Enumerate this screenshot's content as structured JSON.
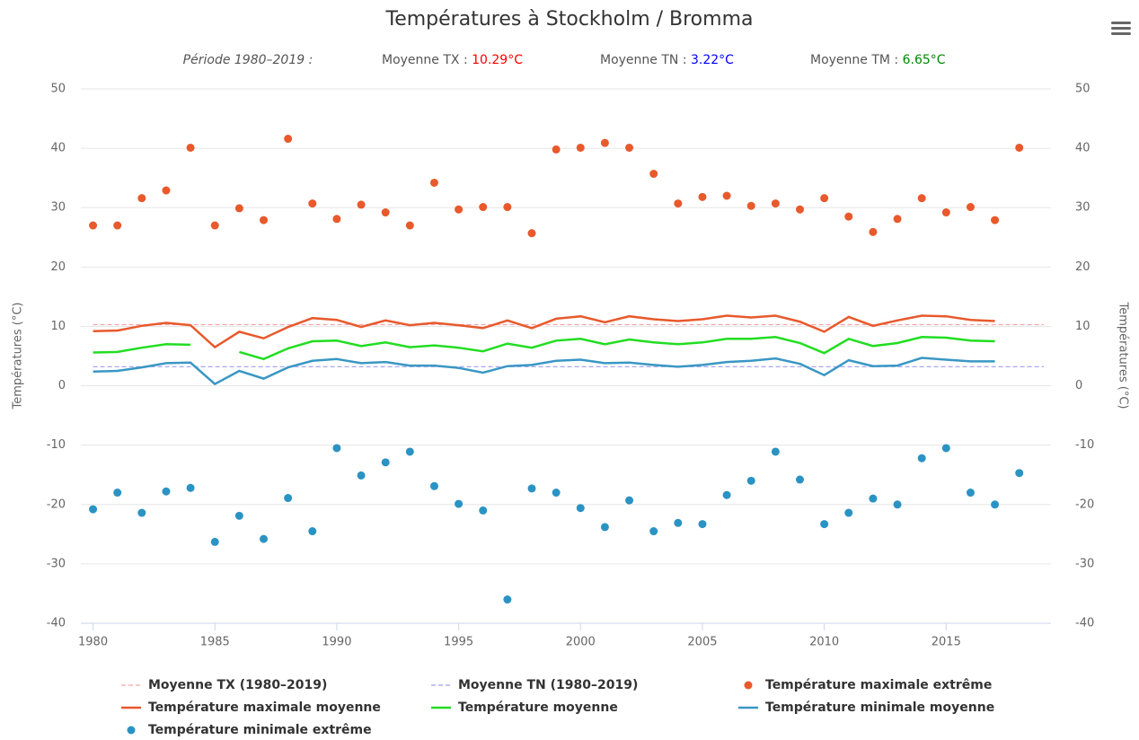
{
  "chart_data": {
    "type": "line",
    "title": "Températures à Stockholm / Bromma",
    "subtitle": {
      "period": "Période 1980–2019 :",
      "tx_label": "Moyenne TX : ",
      "tx_value": "10.29°C",
      "tn_label": "Moyenne TN : ",
      "tn_value": "3.22°C",
      "tm_label": "Moyenne TM : ",
      "tm_value": "6.65°C"
    },
    "y_label": "Températures (°C)",
    "y2_label": "Températures (°C)",
    "xlim": [
      1979.5,
      2019.3
    ],
    "xticks": [
      1980,
      1985,
      1990,
      1995,
      2000,
      2005,
      2010,
      2015
    ],
    "ylim": [
      -40,
      50
    ],
    "yticks": [
      -40,
      -30,
      -20,
      -10,
      0,
      10,
      20,
      30,
      40,
      50
    ],
    "y2lim": [
      -40,
      50
    ],
    "y2ticks": [
      -40,
      -30,
      -20,
      -10,
      0,
      10,
      20,
      30,
      40,
      50
    ],
    "grid": true,
    "series": [
      {
        "name": "Moyenne TX (1980–2019)",
        "type": "line",
        "line_style": "dashed",
        "color": "#f4a3ab",
        "x": [
          1980,
          2019
        ],
        "values": [
          10.29,
          10.29
        ]
      },
      {
        "name": "Moyenne TN (1980–2019)",
        "type": "line",
        "line_style": "dashed",
        "color": "#9d9df0",
        "x": [
          1980,
          2019
        ],
        "values": [
          3.22,
          3.22
        ]
      },
      {
        "name": "Température maximale extrême",
        "type": "scatter",
        "color": "#e8592c",
        "x": [
          1980,
          1981,
          1982,
          1983,
          1984,
          1985,
          1986,
          1987,
          1988,
          1989,
          1990,
          1991,
          1992,
          1993,
          1994,
          1995,
          1996,
          1997,
          1998,
          1999,
          2000,
          2001,
          2002,
          2003,
          2004,
          2005,
          2006,
          2007,
          2008,
          2009,
          2010,
          2011,
          2012,
          2013,
          2014,
          2015,
          2016,
          2017,
          2018
        ],
        "values": [
          27,
          27,
          31.6,
          32.9,
          40.1,
          27,
          29.9,
          27.9,
          41.6,
          30.7,
          28.1,
          30.5,
          29.2,
          27,
          34.2,
          29.7,
          30.1,
          30.1,
          25.7,
          39.8,
          40.1,
          40.9,
          40.1,
          35.7,
          30.7,
          31.8,
          32,
          30.3,
          30.7,
          29.7,
          31.6,
          28.5,
          25.9,
          28.1,
          31.6,
          29.2,
          30.1,
          27.9,
          40.1
        ]
      },
      {
        "name": "Température maximale moyenne",
        "type": "line",
        "color": "#e8592c",
        "x": [
          1980,
          1981,
          1982,
          1983,
          1984,
          1985,
          1986,
          1987,
          1988,
          1989,
          1990,
          1991,
          1992,
          1993,
          1994,
          1995,
          1996,
          1997,
          1998,
          1999,
          2000,
          2001,
          2002,
          2003,
          2004,
          2005,
          2006,
          2007,
          2008,
          2009,
          2010,
          2011,
          2012,
          2013,
          2014,
          2015,
          2016,
          2017
        ],
        "values": [
          9.2,
          9.3,
          10.1,
          10.6,
          10.2,
          6.5,
          9.1,
          8,
          9.9,
          11.4,
          11.1,
          9.9,
          11,
          10.2,
          10.6,
          10.2,
          9.7,
          11,
          9.7,
          11.3,
          11.7,
          10.7,
          11.7,
          11.2,
          10.9,
          11.2,
          11.8,
          11.5,
          11.8,
          10.8,
          9.1,
          11.6,
          10.1,
          11,
          11.8,
          11.7,
          11.1,
          10.9
        ]
      },
      {
        "name": "Température moyenne",
        "type": "line",
        "color": "#22dd22",
        "x": [
          1980,
          1981,
          1982,
          1983,
          1984,
          1985,
          1986,
          1987,
          1988,
          1989,
          1990,
          1991,
          1992,
          1993,
          1994,
          1995,
          1996,
          1997,
          1998,
          1999,
          2000,
          2001,
          2002,
          2003,
          2004,
          2005,
          2006,
          2007,
          2008,
          2009,
          2010,
          2011,
          2012,
          2013,
          2014,
          2015,
          2016,
          2017
        ],
        "values": [
          5.6,
          5.7,
          6.4,
          7,
          6.9,
          null,
          5.7,
          4.5,
          6.3,
          7.5,
          7.6,
          6.7,
          7.3,
          6.5,
          6.8,
          6.4,
          5.8,
          7.1,
          6.4,
          7.6,
          7.9,
          7,
          7.8,
          7.3,
          7,
          7.3,
          7.9,
          7.9,
          8.2,
          7.2,
          5.5,
          7.9,
          6.7,
          7.2,
          8.2,
          8.1,
          7.6,
          7.5
        ]
      },
      {
        "name": "Température minimale moyenne",
        "type": "line",
        "color": "#3a97c4",
        "x": [
          1980,
          1981,
          1982,
          1983,
          1984,
          1985,
          1986,
          1987,
          1988,
          1989,
          1990,
          1991,
          1992,
          1993,
          1994,
          1995,
          1996,
          1997,
          1998,
          1999,
          2000,
          2001,
          2002,
          2003,
          2004,
          2005,
          2006,
          2007,
          2008,
          2009,
          2010,
          2011,
          2012,
          2013,
          2014,
          2015,
          2016,
          2017
        ],
        "values": [
          2.4,
          2.5,
          3.1,
          3.8,
          3.9,
          0.3,
          2.5,
          1.2,
          3.1,
          4.2,
          4.5,
          3.8,
          4,
          3.4,
          3.4,
          3,
          2.2,
          3.3,
          3.5,
          4.2,
          4.4,
          3.8,
          3.9,
          3.5,
          3.2,
          3.5,
          4,
          4.2,
          4.6,
          3.7,
          1.8,
          4.3,
          3.3,
          3.4,
          4.7,
          4.4,
          4.1,
          4.1
        ]
      },
      {
        "name": "Température minimale extrême",
        "type": "scatter",
        "color": "#2b93c4",
        "x": [
          1980,
          1981,
          1982,
          1983,
          1984,
          1985,
          1986,
          1987,
          1988,
          1989,
          1990,
          1991,
          1992,
          1993,
          1994,
          1995,
          1996,
          1997,
          1998,
          1999,
          2000,
          2001,
          2002,
          2003,
          2004,
          2005,
          2006,
          2007,
          2008,
          2009,
          2010,
          2011,
          2012,
          2013,
          2014,
          2015,
          2016,
          2017,
          2018
        ],
        "values": [
          -20.8,
          -18,
          -21.4,
          -17.8,
          -17.2,
          -26.3,
          -21.9,
          -25.8,
          -18.9,
          -24.5,
          -10.5,
          -15.1,
          -12.9,
          -11.1,
          -16.9,
          -19.9,
          -21,
          -36,
          -17.3,
          -18,
          -20.6,
          -23.8,
          -19.3,
          -24.5,
          -23.1,
          -23.3,
          -18.4,
          -16,
          -11.1,
          -15.8,
          -23.3,
          -21.4,
          -19,
          -20,
          -12.2,
          -10.5,
          -18,
          -20,
          -14.7
        ]
      }
    ]
  }
}
